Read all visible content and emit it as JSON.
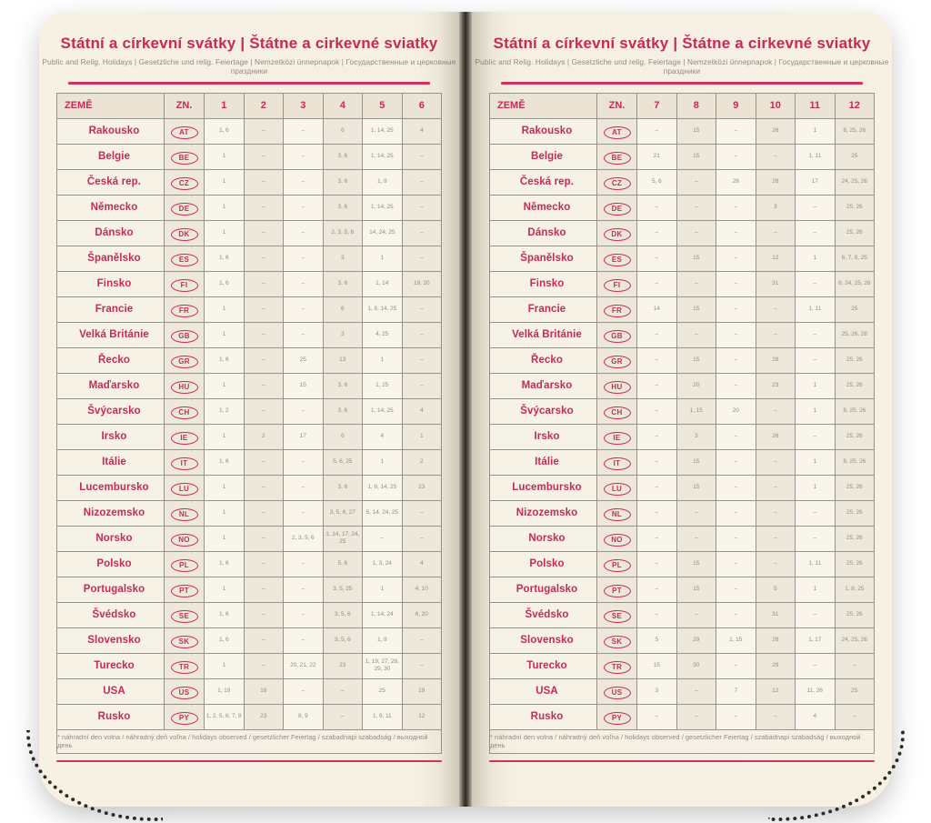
{
  "colors": {
    "accent": "#c62a56",
    "page_background": "#f6f0e3",
    "cell_light": "#f9f5ea",
    "cell_dark": "#eee8da",
    "grid_border": "#95938d",
    "muted_text": "#8d8b83"
  },
  "header": {
    "title": "Státní a církevní svátky | Štátne a cirkevné sviatky",
    "subtitle": "Public and Relig. Holidays | Gesetzliche und relig. Feiertage | Nemzetközi ünnepnapok | Государственные и церковные праздники"
  },
  "table": {
    "country_header": "ZEMĚ",
    "code_header": "ZN.",
    "left_months": [
      "1",
      "2",
      "3",
      "4",
      "5",
      "6"
    ],
    "right_months": [
      "7",
      "8",
      "9",
      "10",
      "11",
      "12"
    ]
  },
  "footnote": "* náhradní den volna / náhradný deň voľna / holidays observed / gesetzlicher Feiertag / szabadnapi szabadság / выходной день",
  "rows": [
    {
      "name": "Rakousko",
      "code": "AT",
      "left": [
        "1, 6",
        "–",
        "–",
        "6",
        "1, 14, 25",
        "4"
      ],
      "right": [
        "–",
        "15",
        "–",
        "26",
        "1",
        "8, 25, 26"
      ]
    },
    {
      "name": "Belgie",
      "code": "BE",
      "left": [
        "1",
        "–",
        "–",
        "3, 6",
        "1, 14, 25",
        "–"
      ],
      "right": [
        "21",
        "15",
        "–",
        "–",
        "1, 11",
        "25"
      ]
    },
    {
      "name": "Česká rep.",
      "code": "CZ",
      "left": [
        "1",
        "–",
        "–",
        "3, 6",
        "1, 8",
        "–"
      ],
      "right": [
        "5, 6",
        "–",
        "28",
        "28",
        "17",
        "24, 25, 26"
      ]
    },
    {
      "name": "Německo",
      "code": "DE",
      "left": [
        "1",
        "–",
        "–",
        "3, 6",
        "1, 14, 25",
        "–"
      ],
      "right": [
        "–",
        "–",
        "–",
        "3",
        "–",
        "25, 26"
      ]
    },
    {
      "name": "Dánsko",
      "code": "DK",
      "left": [
        "1",
        "–",
        "–",
        "2, 3, 5, 6",
        "14, 24, 25",
        "–"
      ],
      "right": [
        "–",
        "–",
        "–",
        "–",
        "–",
        "25, 26"
      ]
    },
    {
      "name": "Španělsko",
      "code": "ES",
      "left": [
        "1, 6",
        "–",
        "–",
        "3",
        "1",
        "–"
      ],
      "right": [
        "–",
        "15",
        "–",
        "12",
        "1",
        "6, 7, 8, 25"
      ]
    },
    {
      "name": "Finsko",
      "code": "FI",
      "left": [
        "1, 6",
        "–",
        "–",
        "3, 6",
        "1, 14",
        "19, 20"
      ],
      "right": [
        "–",
        "–",
        "–",
        "31",
        "–",
        "6, 24, 25, 26"
      ]
    },
    {
      "name": "Francie",
      "code": "FR",
      "left": [
        "1",
        "–",
        "–",
        "6",
        "1, 8, 14, 25",
        "–"
      ],
      "right": [
        "14",
        "15",
        "–",
        "–",
        "1, 11",
        "25"
      ]
    },
    {
      "name": "Velká Británie",
      "code": "GB",
      "left": [
        "1",
        "–",
        "–",
        "3",
        "4, 25",
        "–"
      ],
      "right": [
        "–",
        "–",
        "–",
        "–",
        "–",
        "25, 26, 28"
      ]
    },
    {
      "name": "Řecko",
      "code": "GR",
      "left": [
        "1, 6",
        "–",
        "25",
        "13",
        "1",
        "–"
      ],
      "right": [
        "–",
        "15",
        "–",
        "28",
        "–",
        "25, 26"
      ]
    },
    {
      "name": "Maďarsko",
      "code": "HU",
      "left": [
        "1",
        "–",
        "15",
        "3, 6",
        "1, 25",
        "–"
      ],
      "right": [
        "–",
        "20",
        "–",
        "23",
        "1",
        "25, 26"
      ]
    },
    {
      "name": "Švýcarsko",
      "code": "CH",
      "left": [
        "1, 2",
        "–",
        "–",
        "3, 6",
        "1, 14, 25",
        "4"
      ],
      "right": [
        "–",
        "1, 15",
        "20",
        "–",
        "1",
        "8, 25, 26"
      ]
    },
    {
      "name": "Irsko",
      "code": "IE",
      "left": [
        "1",
        "2",
        "17",
        "6",
        "4",
        "1"
      ],
      "right": [
        "–",
        "3",
        "–",
        "26",
        "–",
        "25, 26"
      ]
    },
    {
      "name": "Itálie",
      "code": "IT",
      "left": [
        "1, 6",
        "–",
        "–",
        "5, 6, 25",
        "1",
        "2"
      ],
      "right": [
        "–",
        "15",
        "–",
        "–",
        "1",
        "8, 25, 26"
      ]
    },
    {
      "name": "Lucembursko",
      "code": "LU",
      "left": [
        "1",
        "–",
        "–",
        "3, 6",
        "1, 9, 14, 25",
        "23"
      ],
      "right": [
        "–",
        "15",
        "–",
        "–",
        "1",
        "25, 26"
      ]
    },
    {
      "name": "Nizozemsko",
      "code": "NL",
      "left": [
        "1",
        "–",
        "–",
        "3, 5, 6, 27",
        "5, 14, 24, 25",
        "–"
      ],
      "right": [
        "–",
        "–",
        "–",
        "–",
        "–",
        "25, 26"
      ]
    },
    {
      "name": "Norsko",
      "code": "NO",
      "left": [
        "1",
        "–",
        "2, 3, 5, 6",
        "1, 14, 17, 24, 25",
        "–",
        "–"
      ],
      "right": [
        "–",
        "–",
        "–",
        "–",
        "–",
        "25, 26"
      ]
    },
    {
      "name": "Polsko",
      "code": "PL",
      "left": [
        "1, 6",
        "–",
        "–",
        "5, 6",
        "1, 3, 24",
        "4"
      ],
      "right": [
        "–",
        "15",
        "–",
        "–",
        "1, 11",
        "25, 26"
      ]
    },
    {
      "name": "Portugalsko",
      "code": "PT",
      "left": [
        "1",
        "–",
        "–",
        "3, 5, 25",
        "1",
        "4, 10"
      ],
      "right": [
        "–",
        "15",
        "–",
        "5",
        "1",
        "1, 8, 25"
      ]
    },
    {
      "name": "Švédsko",
      "code": "SE",
      "left": [
        "1, 6",
        "–",
        "–",
        "3, 5, 6",
        "1, 14, 24",
        "6, 20"
      ],
      "right": [
        "–",
        "–",
        "–",
        "31",
        "–",
        "25, 26"
      ]
    },
    {
      "name": "Slovensko",
      "code": "SK",
      "left": [
        "1, 6",
        "–",
        "–",
        "3, 5, 6",
        "1, 8",
        "–"
      ],
      "right": [
        "5",
        "29",
        "1, 15",
        "28",
        "1, 17",
        "24, 25, 26"
      ]
    },
    {
      "name": "Turecko",
      "code": "TR",
      "left": [
        "1",
        "–",
        "20, 21, 22",
        "23",
        "1, 19, 27, 28, 29, 30",
        "–"
      ],
      "right": [
        "15",
        "30",
        "–",
        "29",
        "–",
        "–"
      ]
    },
    {
      "name": "USA",
      "code": "US",
      "left": [
        "1, 19",
        "16",
        "–",
        "–",
        "25",
        "19"
      ],
      "right": [
        "3",
        "–",
        "7",
        "12",
        "11, 26",
        "25"
      ]
    },
    {
      "name": "Rusko",
      "code": "PY",
      "left": [
        "1, 2, 5, 6, 7, 8",
        "23",
        "8, 9",
        "–",
        "1, 9, 11",
        "12"
      ],
      "right": [
        "–",
        "–",
        "–",
        "–",
        "4",
        "–"
      ]
    }
  ]
}
